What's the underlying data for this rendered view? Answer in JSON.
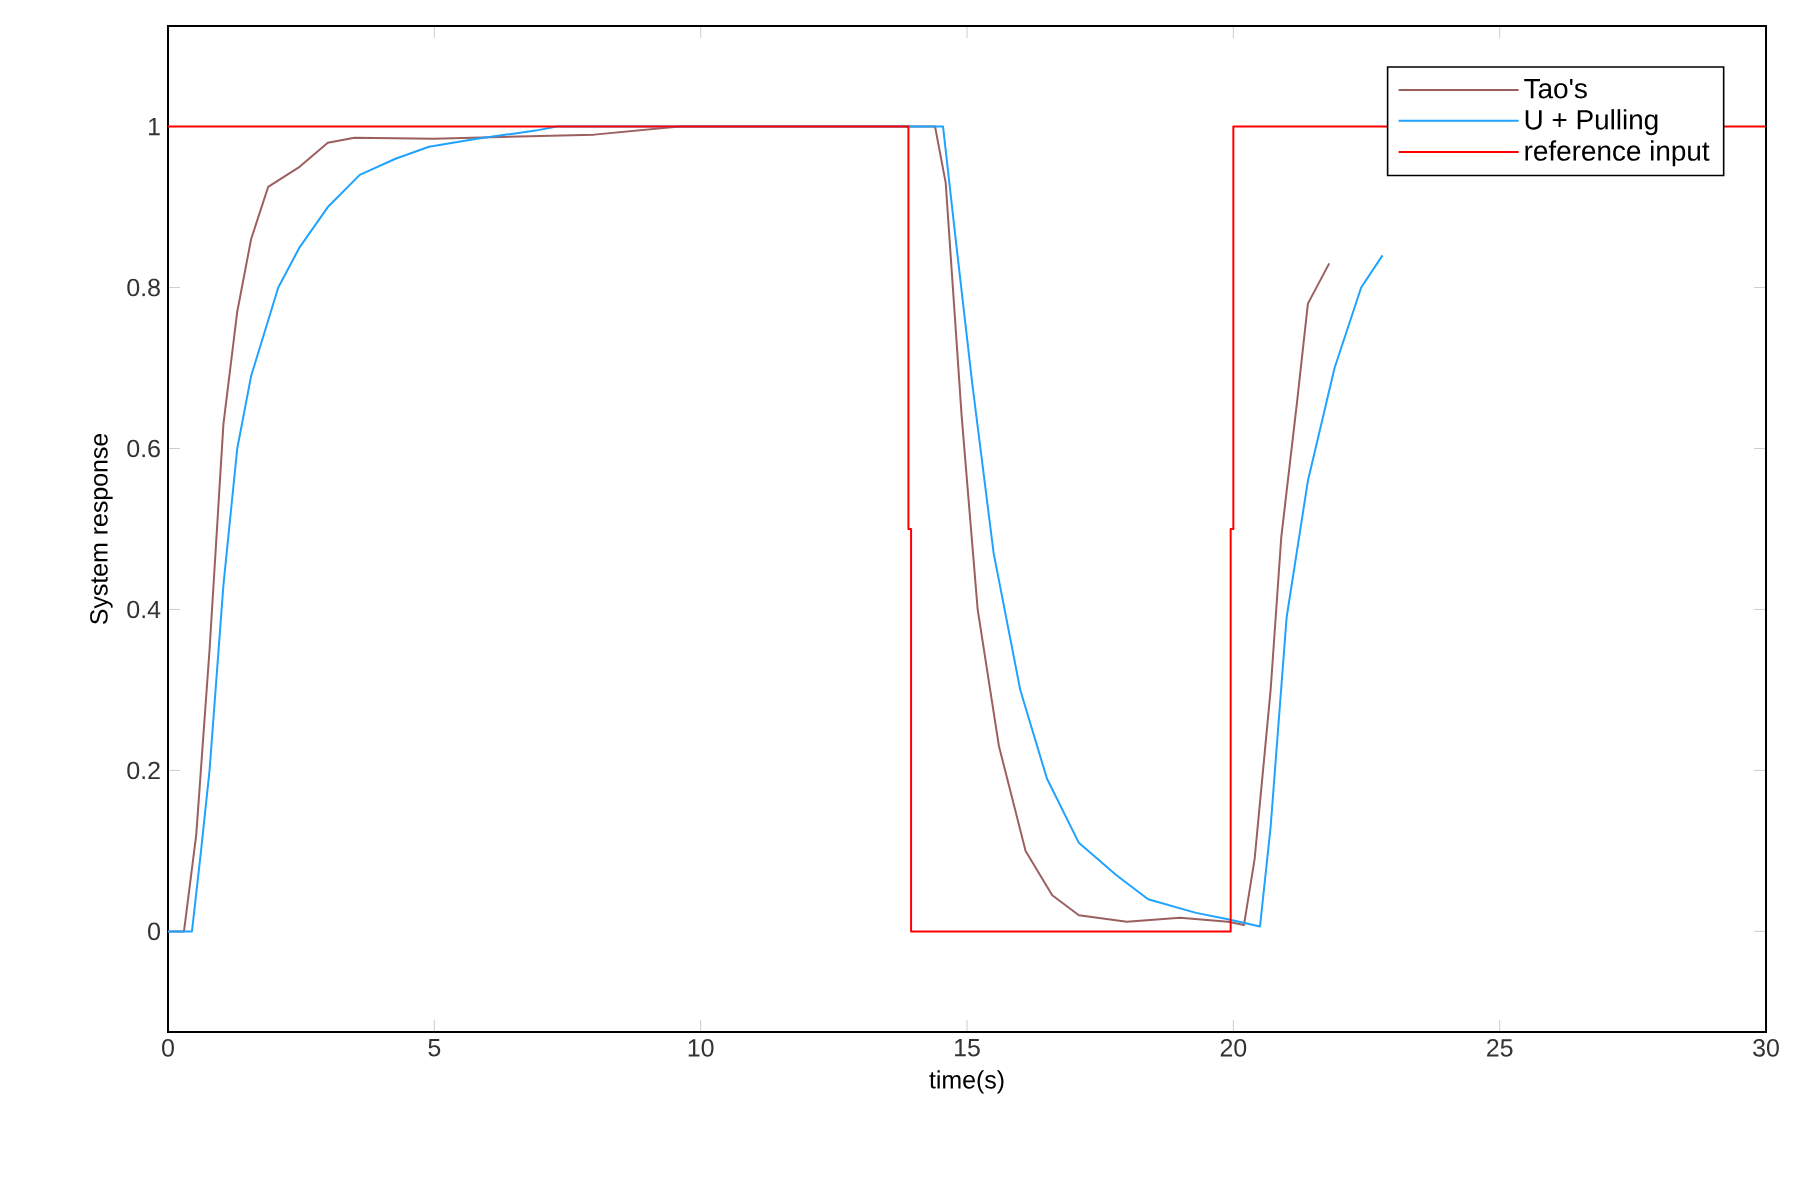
{
  "chart_data": {
    "type": "line",
    "xlabel": "time(s)",
    "ylabel": "System response",
    "xlim": [
      0,
      30
    ],
    "ylim": [
      -0.125,
      1.125
    ],
    "xticks": [
      0,
      5,
      10,
      15,
      20,
      25,
      30
    ],
    "yticks": [
      0,
      0.2,
      0.4,
      0.6,
      0.8,
      1
    ],
    "legend": "top right",
    "grid": false,
    "marker": "none",
    "line_style": "solid",
    "series": [
      {
        "name": "Tao's",
        "color": "#9c5f5f",
        "x": [
          0,
          0.3,
          0.53,
          0.78,
          1.04,
          1.3,
          1.56,
          1.88,
          2.47,
          3.0,
          3.5,
          5,
          8,
          9.6,
          14.0,
          14.4,
          14.6,
          14.9,
          15.2,
          15.6,
          16.1,
          16.6,
          17.1,
          18.0,
          19.0,
          19.9,
          20.2,
          20.4,
          20.7,
          20.9,
          21.2,
          21.4,
          21.8
        ],
        "values": [
          0,
          0,
          0.12,
          0.35,
          0.63,
          0.77,
          0.86,
          0.925,
          0.95,
          0.98,
          0.986,
          0.985,
          0.99,
          1,
          1,
          1,
          0.93,
          0.64,
          0.4,
          0.23,
          0.1,
          0.045,
          0.02,
          0.012,
          0.017,
          0.012,
          0.008,
          0.09,
          0.3,
          0.49,
          0.66,
          0.78,
          0.83
        ]
      },
      {
        "name": "U + Pulling",
        "color": "#1fa3ff",
        "x": [
          0,
          0.45,
          0.62,
          0.78,
          1.04,
          1.3,
          1.56,
          2.07,
          2.47,
          3.0,
          3.6,
          4.27,
          4.9,
          5.8,
          6.9,
          7.3,
          14.0,
          14.55,
          14.77,
          15.1,
          15.5,
          16.0,
          16.5,
          17.1,
          17.8,
          18.4,
          19.3,
          19.9,
          20.5,
          20.7,
          21.0,
          21.4,
          21.9,
          22.4,
          22.8
        ],
        "values": [
          0,
          0,
          0.1,
          0.2,
          0.43,
          0.6,
          0.69,
          0.8,
          0.85,
          0.9,
          0.94,
          0.96,
          0.975,
          0.985,
          0.995,
          1,
          1,
          1,
          0.87,
          0.68,
          0.47,
          0.3,
          0.19,
          0.11,
          0.07,
          0.04,
          0.023,
          0.015,
          0.006,
          0.13,
          0.39,
          0.56,
          0.7,
          0.8,
          0.84
        ]
      },
      {
        "name": "reference input",
        "color": "#ff0000",
        "x": [
          0,
          13.9,
          13.9,
          13.95,
          13.95,
          19.95,
          19.95,
          20,
          20,
          30
        ],
        "values": [
          1,
          1,
          0.5,
          0.5,
          0,
          0,
          0.5,
          0.5,
          1,
          1
        ]
      }
    ]
  }
}
